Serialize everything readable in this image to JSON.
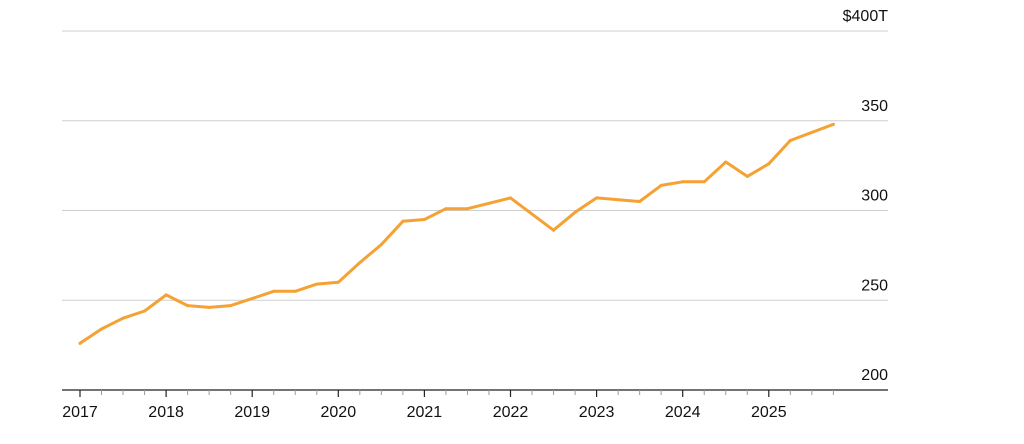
{
  "chart_data": {
    "type": "line",
    "title": "",
    "xlabel": "",
    "ylabel": "",
    "y_axis": {
      "min": 200,
      "max": 400,
      "ticks": [
        200,
        250,
        300,
        350,
        400
      ],
      "tick_labels": [
        "200",
        "250",
        "300",
        "350",
        "$400T"
      ],
      "side": "right"
    },
    "x_axis": {
      "min": 2017,
      "max": 2026,
      "tick_labels": [
        "2017",
        "2018",
        "2019",
        "2020",
        "2021",
        "2022",
        "2023",
        "2024",
        "2025"
      ]
    },
    "grid": true,
    "colors": {
      "line": "#f5a133",
      "grid": "#cfcfcf",
      "axis": "#222222"
    },
    "series": [
      {
        "x": [
          "2017-Q1",
          "2017-Q2",
          "2017-Q3",
          "2017-Q4",
          "2018-Q1",
          "2018-Q2",
          "2018-Q3",
          "2018-Q4",
          "2019-Q1",
          "2019-Q2",
          "2019-Q3",
          "2019-Q4",
          "2020-Q1",
          "2020-Q2",
          "2020-Q3",
          "2020-Q4",
          "2021-Q1",
          "2021-Q2",
          "2021-Q3",
          "2021-Q4",
          "2022-Q1",
          "2022-Q3",
          "2022-Q4",
          "2023-Q1",
          "2023-Q3",
          "2023-Q4",
          "2024-Q1",
          "2024-Q2",
          "2024-Q3",
          "2024-Q4",
          "2025-Q1",
          "2025-Q2",
          "2025-Q4"
        ],
        "t": [
          2017.0,
          2017.25,
          2017.5,
          2017.75,
          2018.0,
          2018.25,
          2018.5,
          2018.75,
          2019.0,
          2019.25,
          2019.5,
          2019.75,
          2020.0,
          2020.25,
          2020.5,
          2020.75,
          2021.0,
          2021.25,
          2021.5,
          2021.75,
          2022.0,
          2022.5,
          2022.75,
          2023.0,
          2023.5,
          2023.75,
          2024.0,
          2024.25,
          2024.5,
          2024.75,
          2025.0,
          2025.25,
          2025.75
        ],
        "y": [
          226,
          234,
          240,
          244,
          253,
          247,
          246,
          247,
          251,
          255,
          255,
          259,
          260,
          271,
          281,
          294,
          295,
          301,
          301,
          304,
          307,
          289,
          299,
          307,
          305,
          314,
          316,
          316,
          327,
          319,
          326,
          339,
          348
        ]
      }
    ]
  }
}
